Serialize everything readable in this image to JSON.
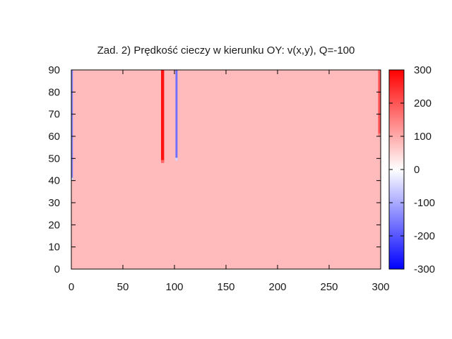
{
  "chart_data": {
    "type": "heatmap",
    "title": "Zad. 2) Prędkość cieczy w kierunku OY: v(x,y), Q=-100",
    "xlabel": "",
    "ylabel": "",
    "xlim": [
      0,
      300
    ],
    "ylim": [
      0,
      90
    ],
    "x_ticks": [
      "0",
      "50",
      "100",
      "150",
      "200",
      "250",
      "300"
    ],
    "y_ticks": [
      "0",
      "10",
      "20",
      "30",
      "40",
      "50",
      "60",
      "70",
      "80",
      "90"
    ],
    "colorbar": {
      "range": [
        -300,
        300
      ],
      "ticks": [
        "300",
        "200",
        "100",
        "0",
        "-100",
        "-200",
        "-300"
      ],
      "colors": {
        "min": "#0000ff",
        "mid": "#ffffff",
        "max": "#ff0000"
      }
    },
    "grid": false,
    "background_value": 80,
    "features": [
      {
        "x_range": [
          0,
          1.5
        ],
        "y_range": [
          40,
          90
        ],
        "value": -150
      },
      {
        "x_range": [
          87,
          90
        ],
        "y_range": [
          48,
          90
        ],
        "value": 280
      },
      {
        "x_range": [
          101,
          103
        ],
        "y_range": [
          49,
          90
        ],
        "value": -170
      },
      {
        "x_range": [
          297.5,
          300
        ],
        "y_range": [
          60,
          90
        ],
        "value": 200
      }
    ]
  }
}
